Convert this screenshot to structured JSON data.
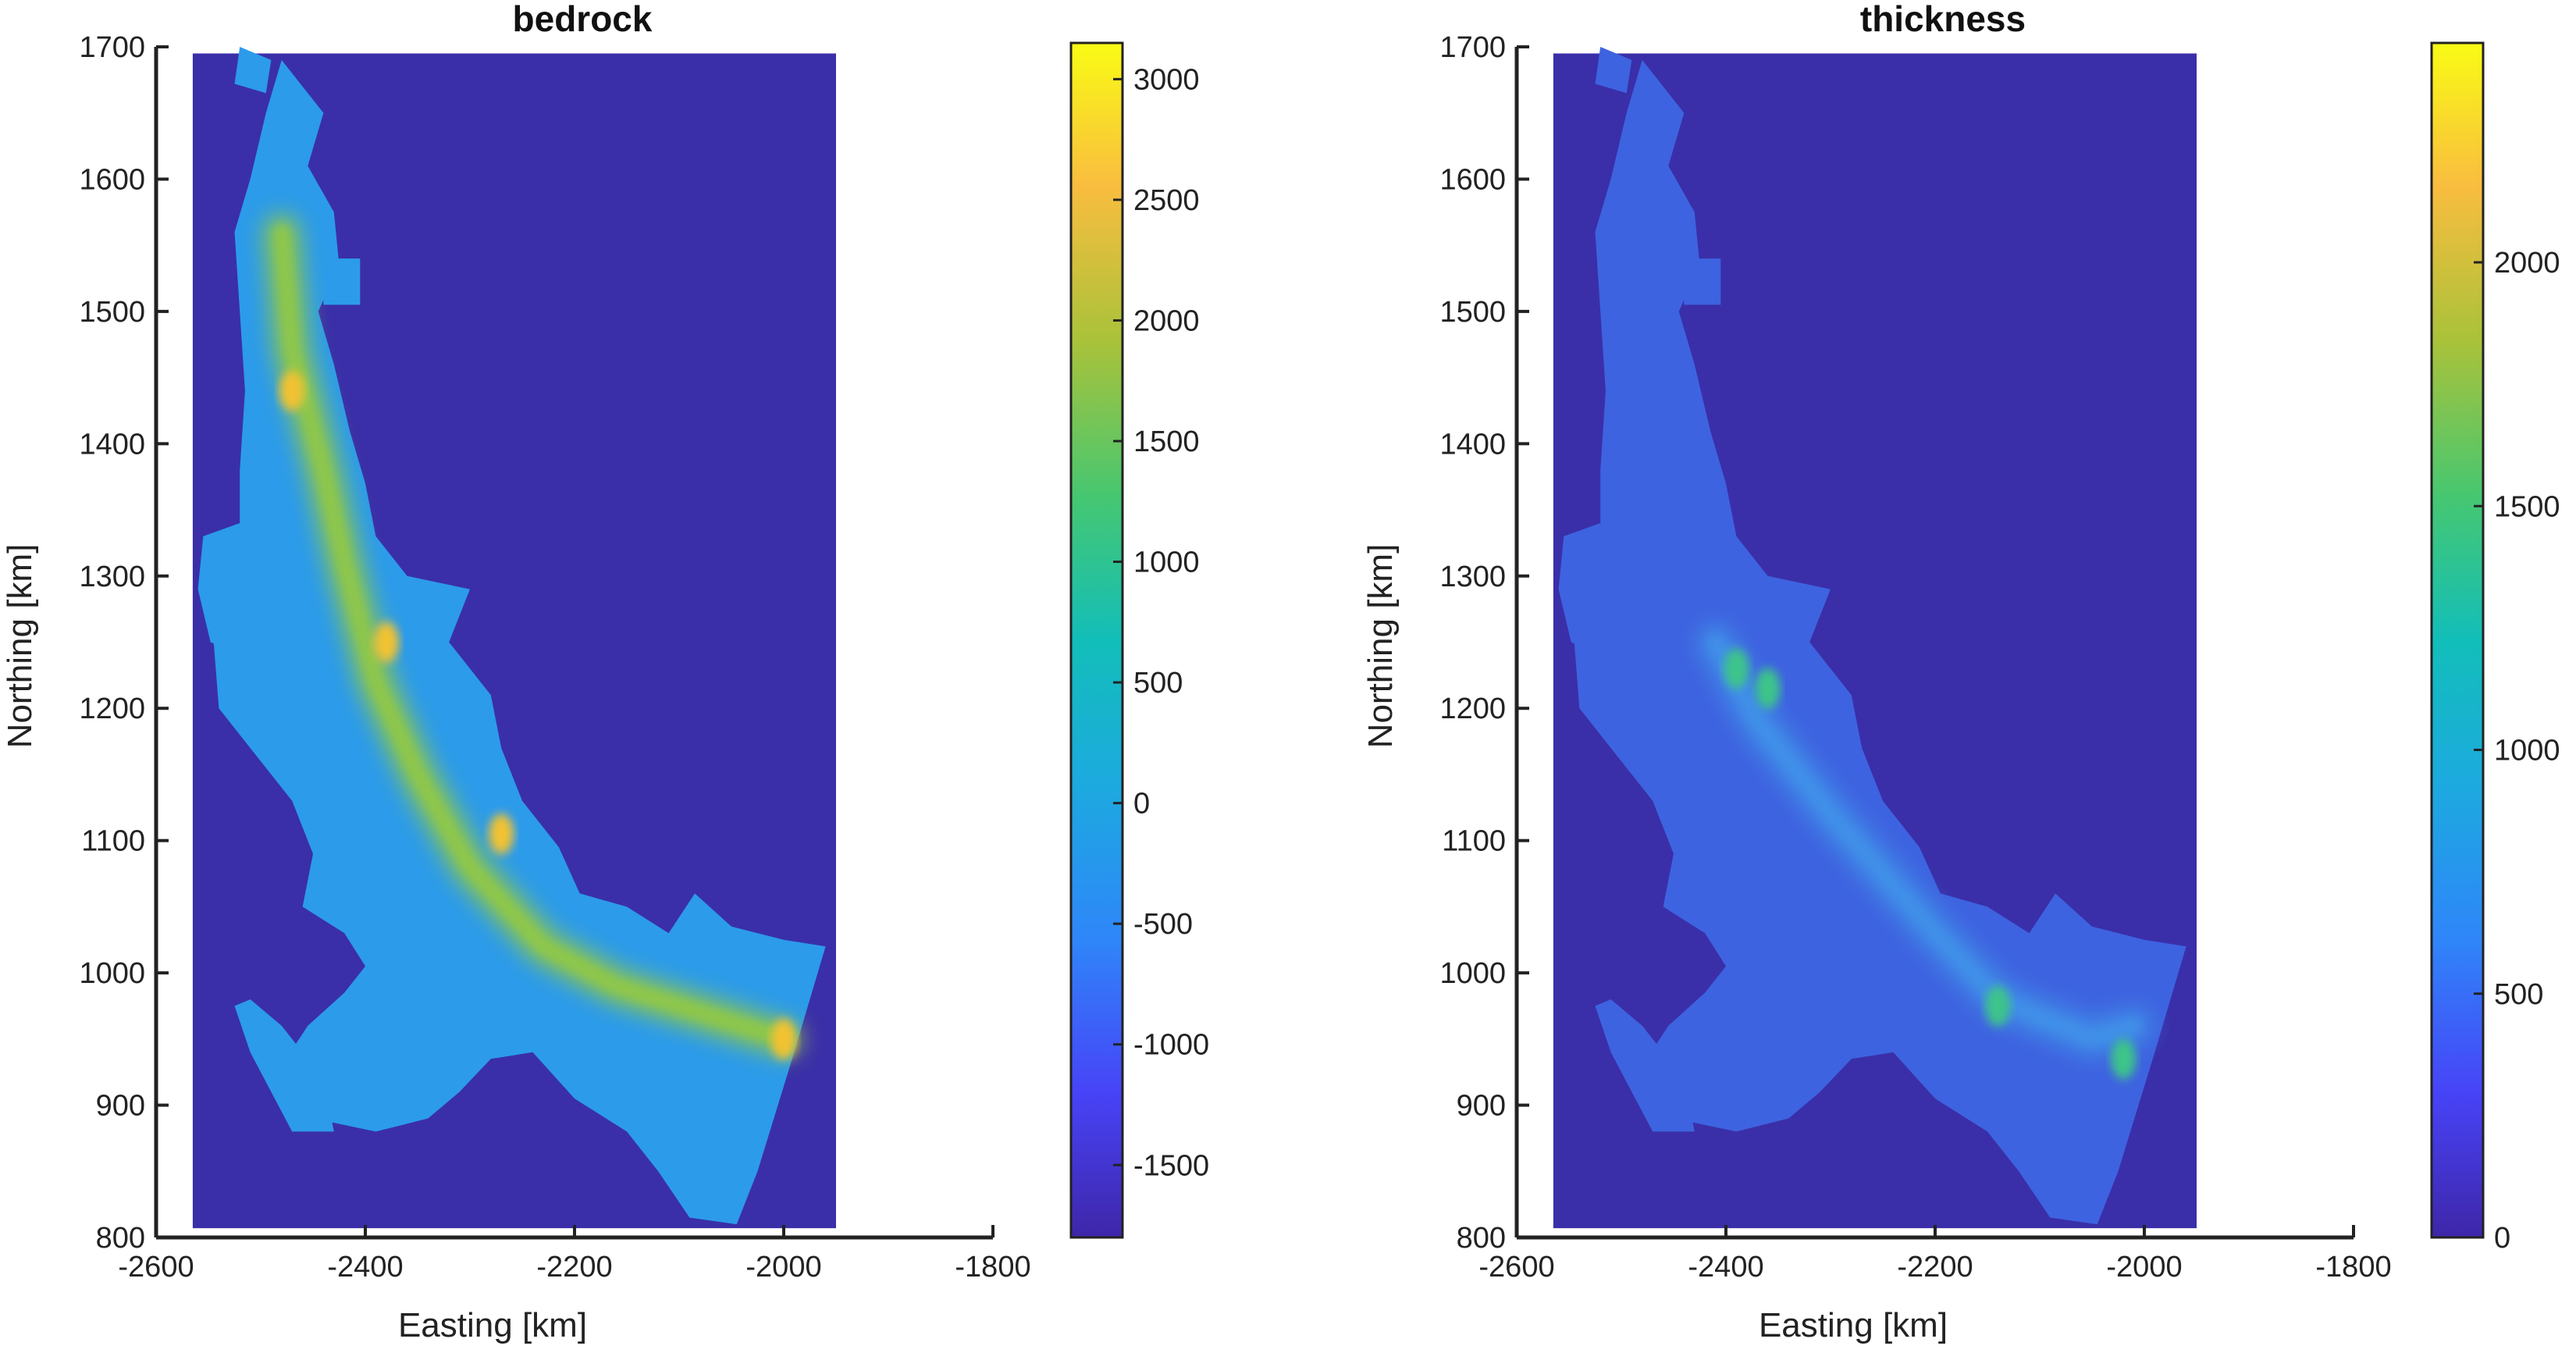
{
  "chart_data": [
    {
      "type": "heatmap",
      "title": "bedrock",
      "xlabel": "Easting [km]",
      "ylabel": "Northing [km]",
      "xlim": [
        -2600,
        -1800
      ],
      "ylim": [
        800,
        1700
      ],
      "xticks": [
        -2600,
        -2400,
        -2200,
        -2000,
        -1800
      ],
      "yticks": [
        800,
        900,
        1000,
        1100,
        1200,
        1300,
        1400,
        1500,
        1600,
        1700
      ],
      "data_extent": {
        "x": [
          -2565,
          -1950
        ],
        "y": [
          807,
          1695
        ]
      },
      "colorbar": {
        "range": [
          -1800,
          3150
        ],
        "ticks": [
          -1500,
          -1000,
          -500,
          0,
          500,
          1000,
          1500,
          2000,
          2500,
          3000
        ]
      },
      "background_color": "#3A2FA8",
      "land_color": "#2C9BEA",
      "ridge_color": "#8FC74A",
      "peak_color": "#F2C230",
      "grid": false,
      "land_outline": [
        [
          -2480,
          1690
        ],
        [
          -2440,
          1650
        ],
        [
          -2455,
          1610
        ],
        [
          -2430,
          1575
        ],
        [
          -2425,
          1535
        ],
        [
          -2445,
          1500
        ],
        [
          -2430,
          1460
        ],
        [
          -2415,
          1410
        ],
        [
          -2400,
          1370
        ],
        [
          -2390,
          1330
        ],
        [
          -2360,
          1300
        ],
        [
          -2300,
          1290
        ],
        [
          -2320,
          1250
        ],
        [
          -2280,
          1210
        ],
        [
          -2270,
          1170
        ],
        [
          -2250,
          1130
        ],
        [
          -2215,
          1095
        ],
        [
          -2195,
          1060
        ],
        [
          -2150,
          1050
        ],
        [
          -2110,
          1030
        ],
        [
          -2085,
          1060
        ],
        [
          -2050,
          1035
        ],
        [
          -2000,
          1025
        ],
        [
          -1960,
          1020
        ],
        [
          -1990,
          940
        ],
        [
          -2025,
          850
        ],
        [
          -2045,
          810
        ],
        [
          -2090,
          815
        ],
        [
          -2120,
          850
        ],
        [
          -2150,
          880
        ],
        [
          -2200,
          905
        ],
        [
          -2240,
          940
        ],
        [
          -2280,
          935
        ],
        [
          -2310,
          910
        ],
        [
          -2340,
          890
        ],
        [
          -2390,
          880
        ],
        [
          -2450,
          890
        ],
        [
          -2480,
          930
        ],
        [
          -2455,
          960
        ],
        [
          -2420,
          985
        ],
        [
          -2400,
          1005
        ],
        [
          -2420,
          1030
        ],
        [
          -2460,
          1050
        ],
        [
          -2450,
          1090
        ],
        [
          -2470,
          1130
        ],
        [
          -2510,
          1170
        ],
        [
          -2540,
          1200
        ],
        [
          -2545,
          1250
        ],
        [
          -2535,
          1290
        ],
        [
          -2520,
          1330
        ],
        [
          -2520,
          1380
        ],
        [
          -2515,
          1440
        ],
        [
          -2520,
          1500
        ],
        [
          -2525,
          1560
        ],
        [
          -2510,
          1600
        ],
        [
          -2495,
          1650
        ]
      ],
      "ridge_line": [
        [
          -2480,
          1560
        ],
        [
          -2470,
          1470
        ],
        [
          -2440,
          1380
        ],
        [
          -2420,
          1310
        ],
        [
          -2390,
          1220
        ],
        [
          -2350,
          1150
        ],
        [
          -2300,
          1080
        ],
        [
          -2230,
          1020
        ],
        [
          -2160,
          990
        ],
        [
          -2080,
          970
        ],
        [
          -2000,
          950
        ]
      ],
      "peak_spots": [
        [
          -2470,
          1440
        ],
        [
          -2380,
          1250
        ],
        [
          -2270,
          1105
        ],
        [
          -2000,
          950
        ]
      ],
      "islands": [
        [
          [
            -2520,
            1700
          ],
          [
            -2490,
            1690
          ],
          [
            -2495,
            1665
          ],
          [
            -2525,
            1672
          ]
        ],
        [
          [
            -2440,
            1540
          ],
          [
            -2405,
            1540
          ],
          [
            -2405,
            1505
          ],
          [
            -2440,
            1505
          ]
        ],
        [
          [
            -2555,
            1330
          ],
          [
            -2520,
            1340
          ],
          [
            -2505,
            1290
          ],
          [
            -2520,
            1240
          ],
          [
            -2548,
            1250
          ],
          [
            -2560,
            1290
          ]
        ],
        [
          [
            -2510,
            980
          ],
          [
            -2480,
            960
          ],
          [
            -2440,
            920
          ],
          [
            -2430,
            880
          ],
          [
            -2470,
            880
          ],
          [
            -2510,
            940
          ],
          [
            -2525,
            975
          ]
        ]
      ]
    },
    {
      "type": "heatmap",
      "title": "thickness",
      "xlabel": "Easting [km]",
      "ylabel": "Northing [km]",
      "xlim": [
        -2600,
        -1800
      ],
      "ylim": [
        800,
        1700
      ],
      "xticks": [
        -2600,
        -2400,
        -2200,
        -2000,
        -1800
      ],
      "yticks": [
        800,
        900,
        1000,
        1100,
        1200,
        1300,
        1400,
        1500,
        1600,
        1700
      ],
      "data_extent": {
        "x": [
          -2565,
          -1950
        ],
        "y": [
          807,
          1695
        ]
      },
      "colorbar": {
        "range": [
          0,
          2450
        ],
        "ticks": [
          0,
          500,
          1000,
          1500,
          2000
        ]
      },
      "background_color": "#3A2FA8",
      "land_color": "#3E63E0",
      "ridge_color": "#3F8FE8",
      "peak_color": "#3EC48A",
      "grid": false,
      "land_outline": [
        [
          -2480,
          1690
        ],
        [
          -2440,
          1650
        ],
        [
          -2455,
          1610
        ],
        [
          -2430,
          1575
        ],
        [
          -2425,
          1535
        ],
        [
          -2445,
          1500
        ],
        [
          -2430,
          1460
        ],
        [
          -2415,
          1410
        ],
        [
          -2400,
          1370
        ],
        [
          -2390,
          1330
        ],
        [
          -2360,
          1300
        ],
        [
          -2300,
          1290
        ],
        [
          -2320,
          1250
        ],
        [
          -2280,
          1210
        ],
        [
          -2270,
          1170
        ],
        [
          -2250,
          1130
        ],
        [
          -2215,
          1095
        ],
        [
          -2195,
          1060
        ],
        [
          -2150,
          1050
        ],
        [
          -2110,
          1030
        ],
        [
          -2085,
          1060
        ],
        [
          -2050,
          1035
        ],
        [
          -2000,
          1025
        ],
        [
          -1960,
          1020
        ],
        [
          -1990,
          940
        ],
        [
          -2025,
          850
        ],
        [
          -2045,
          810
        ],
        [
          -2090,
          815
        ],
        [
          -2120,
          850
        ],
        [
          -2150,
          880
        ],
        [
          -2200,
          905
        ],
        [
          -2240,
          940
        ],
        [
          -2280,
          935
        ],
        [
          -2310,
          910
        ],
        [
          -2340,
          890
        ],
        [
          -2390,
          880
        ],
        [
          -2450,
          890
        ],
        [
          -2480,
          930
        ],
        [
          -2455,
          960
        ],
        [
          -2420,
          985
        ],
        [
          -2400,
          1005
        ],
        [
          -2420,
          1030
        ],
        [
          -2460,
          1050
        ],
        [
          -2450,
          1090
        ],
        [
          -2470,
          1130
        ],
        [
          -2510,
          1170
        ],
        [
          -2540,
          1200
        ],
        [
          -2545,
          1250
        ],
        [
          -2535,
          1290
        ],
        [
          -2520,
          1330
        ],
        [
          -2520,
          1380
        ],
        [
          -2515,
          1440
        ],
        [
          -2520,
          1500
        ],
        [
          -2525,
          1560
        ],
        [
          -2510,
          1600
        ],
        [
          -2495,
          1650
        ]
      ],
      "ridge_line": [
        [
          -2410,
          1250
        ],
        [
          -2370,
          1190
        ],
        [
          -2300,
          1120
        ],
        [
          -2200,
          1030
        ],
        [
          -2140,
          980
        ],
        [
          -2050,
          950
        ],
        [
          -2010,
          960
        ]
      ],
      "peak_spots": [
        [
          -2390,
          1230
        ],
        [
          -2360,
          1215
        ],
        [
          -2140,
          975
        ],
        [
          -2020,
          935
        ]
      ],
      "islands": [
        [
          [
            -2520,
            1700
          ],
          [
            -2490,
            1690
          ],
          [
            -2495,
            1665
          ],
          [
            -2525,
            1672
          ]
        ],
        [
          [
            -2440,
            1540
          ],
          [
            -2405,
            1540
          ],
          [
            -2405,
            1505
          ],
          [
            -2440,
            1505
          ]
        ],
        [
          [
            -2555,
            1330
          ],
          [
            -2520,
            1340
          ],
          [
            -2505,
            1290
          ],
          [
            -2520,
            1240
          ],
          [
            -2548,
            1250
          ],
          [
            -2560,
            1290
          ]
        ],
        [
          [
            -2510,
            980
          ],
          [
            -2480,
            960
          ],
          [
            -2440,
            920
          ],
          [
            -2430,
            880
          ],
          [
            -2470,
            880
          ],
          [
            -2510,
            940
          ],
          [
            -2525,
            975
          ]
        ]
      ]
    }
  ]
}
